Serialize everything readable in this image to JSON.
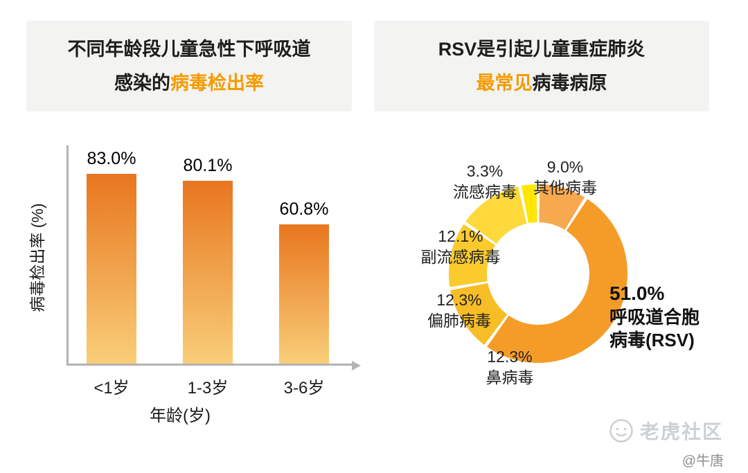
{
  "left_panel": {
    "title_line1": "不同年龄段儿童急性下呼吸道",
    "title_line2_black": "感染的",
    "title_line2_orange": "病毒检出率"
  },
  "right_panel": {
    "title_line1": "RSV是引起儿童重症肺炎",
    "title_line2_orange": "最常见",
    "title_line2_black": "病毒病原"
  },
  "chart_data": [
    {
      "type": "bar",
      "title": "不同年龄段儿童急性下呼吸道感染的病毒检出率",
      "categories": [
        "<1岁",
        "1-3岁",
        "3-6岁"
      ],
      "values": [
        83.0,
        80.1,
        60.8
      ],
      "value_labels": [
        "83.0%",
        "80.1%",
        "60.8%"
      ],
      "xlabel": "年龄(岁)",
      "ylabel": "病毒检出率 (%)",
      "ylim": [
        0,
        100
      ],
      "grid": false,
      "bar_color_top": "#e8761f",
      "bar_color_bottom": "#f9ce79"
    },
    {
      "type": "pie",
      "title": "RSV是引起儿童重症肺炎最常见病毒病原",
      "donut": true,
      "slices": [
        {
          "label": "其他病毒",
          "pct_label": "9.0%",
          "value": 9.0,
          "color": "#f6a94f"
        },
        {
          "label": "呼吸道合胞病毒(RSV)",
          "pct_label": "51.0%",
          "value": 51.0,
          "color": "#f59c28"
        },
        {
          "label": "鼻病毒",
          "pct_label": "12.3%",
          "value": 12.3,
          "color": "#f7bd27"
        },
        {
          "label": "偏肺病毒",
          "pct_label": "12.3%",
          "value": 12.3,
          "color": "#fbcb2e"
        },
        {
          "label": "副流感病毒",
          "pct_label": "12.1%",
          "value": 12.1,
          "color": "#fed93c"
        },
        {
          "label": "流感病毒",
          "pct_label": "3.3%",
          "value": 3.3,
          "color": "#ffe606"
        }
      ]
    }
  ],
  "watermark": {
    "brand": "老虎社区",
    "author": "@牛唐"
  }
}
